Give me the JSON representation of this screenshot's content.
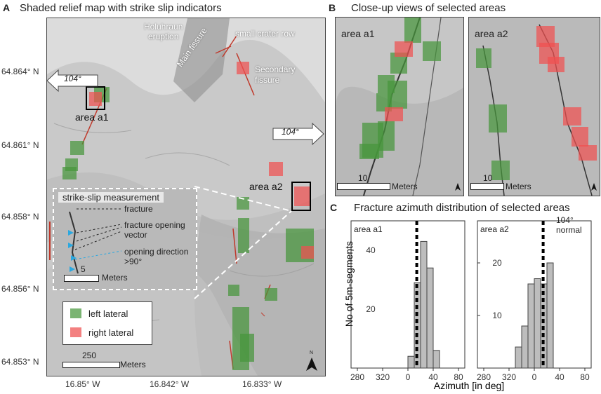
{
  "panel_a": {
    "letter": "A",
    "title": "Shaded relief map with strike slip indicators",
    "lat_ticks": [
      "64.864° N",
      "64.861° N",
      "64.858° N",
      "64.856° N",
      "64.853° N"
    ],
    "lon_ticks": [
      "16.85° W",
      "16.842° W",
      "16.833° W"
    ],
    "labels": {
      "holuhraun": "Holuhraun\neruption",
      "main_fissure": "Main fissure",
      "small_crater": "small crater row",
      "secondary": "Secondary\nfissure",
      "area_a1": "area a1",
      "area_a2": "area a2"
    },
    "arrow_left": "104°",
    "arrow_right": "104°",
    "inset": {
      "title": "strike-slip measurement",
      "fracture": "fracture",
      "vector": "fracture opening\nvector",
      "direction": "opening direction\n>90°",
      "scale_value": "5",
      "scale_unit": "Meters"
    },
    "legend": {
      "left": "left lateral",
      "right": "right lateral",
      "left_color": "#59a14f",
      "right_color": "#f06060"
    },
    "scale_value": "250",
    "scale_unit": "Meters",
    "north": "N"
  },
  "panel_b": {
    "letter": "B",
    "title": "Close-up views of selected areas",
    "a1": {
      "label": "area a1",
      "scale_value": "10",
      "scale_unit": "Meters"
    },
    "a2": {
      "label": "area a2",
      "scale_value": "10",
      "scale_unit": "Meters"
    }
  },
  "panel_c": {
    "letter": "C",
    "title": "Fracture azimuth distribution of selected areas",
    "note": "104°\nnormal"
  },
  "chart_data": [
    {
      "type": "bar",
      "title": "area a1",
      "xlabel": "Azimuth [in deg]",
      "ylabel": "No of 5m-segments",
      "x_ticks": [
        "280",
        "320",
        "0",
        "40",
        "80"
      ],
      "y_ticks": [
        20,
        40
      ],
      "ylim": [
        0,
        50
      ],
      "bin_width": 10,
      "bins": [
        5,
        15,
        25,
        35,
        45
      ],
      "values": [
        4,
        29,
        43,
        34,
        6
      ],
      "normal_line": 14
    },
    {
      "type": "bar",
      "title": "area a2",
      "xlabel": "Azimuth [in deg]",
      "ylabel": "No of 5m-segments",
      "x_ticks": [
        "280",
        "320",
        "0",
        "40",
        "80"
      ],
      "y_ticks": [
        10,
        20
      ],
      "ylim": [
        0,
        28
      ],
      "bin_width": 10,
      "bins": [
        -25,
        -15,
        -5,
        5,
        15,
        25
      ],
      "values": [
        4,
        8,
        16,
        17,
        16,
        20
      ],
      "normal_line": 14
    }
  ]
}
